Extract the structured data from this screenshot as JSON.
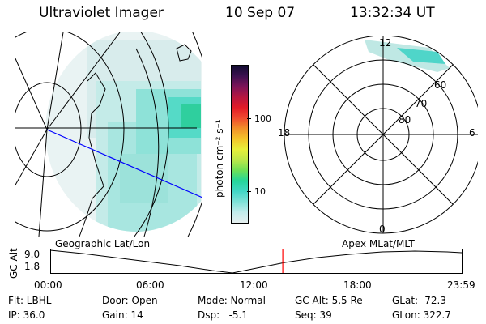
{
  "header": {
    "instrument": "Ultraviolet Imager",
    "date": "10 Sep 07",
    "time": "13:32:34 UT"
  },
  "map_panel": {
    "caption": "Geographic Lat/Lon",
    "aurora_colors": [
      "#e7f2f2",
      "#cfe8e6",
      "#a9e4e0",
      "#6fdcd0",
      "#3fd8c2",
      "#2bc79a"
    ],
    "track_color": "#0000ff"
  },
  "colorbar": {
    "unit_label": "photon cm⁻² s⁻¹",
    "ticks": [
      "100",
      "10"
    ],
    "colors": [
      "#e6efef",
      "#c2ecec",
      "#7fe1d8",
      "#43d6c6",
      "#24d59a",
      "#6ee056",
      "#bce84a",
      "#e8f03a",
      "#f4c52a",
      "#f1902a",
      "#ef4a2f",
      "#e21b27",
      "#b51640",
      "#7d1358",
      "#3d1050",
      "#100b30"
    ]
  },
  "polar_panel": {
    "caption": "Apex MLat/MLT",
    "mlt_labels": {
      "top": "12",
      "left": "18",
      "right": "6",
      "bottom": "0"
    },
    "lat_labels": [
      "60",
      "70",
      "80"
    ],
    "aurora_color": "#4fd5c9"
  },
  "timeline": {
    "axis_label": "GC Alt",
    "y_labels": [
      "9.0",
      "1.8"
    ],
    "x_labels": [
      "00:00",
      "06:00",
      "12:00",
      "18:00",
      "23:59"
    ],
    "current_marker_color": "#ff0000",
    "current_time_fraction": 0.5651
  },
  "status": {
    "flt": "Flt: LBHL",
    "ip": "IP: 36.0",
    "door": "Door: Open",
    "gain": "Gain: 14",
    "mode": "Mode: Normal",
    "dsp": "Dsp:   -5.1",
    "gc_alt": "GC Alt: 5.5 Re",
    "seq": "Seq: 39",
    "glat": "GLat: -72.3",
    "glon": "GLon: 322.7"
  }
}
